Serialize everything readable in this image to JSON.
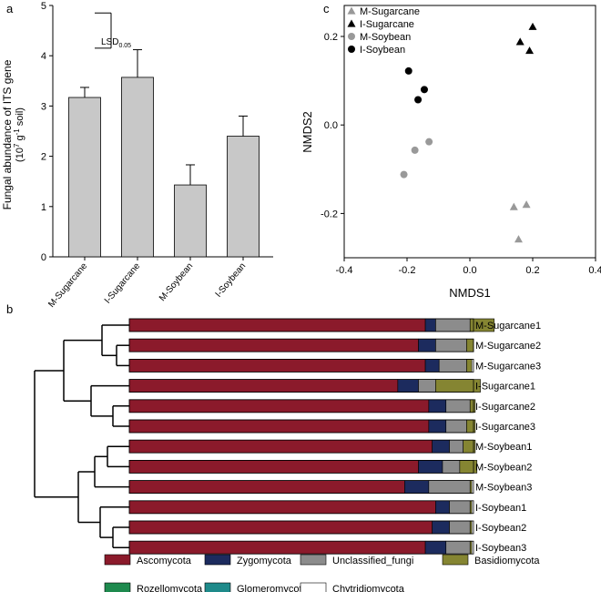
{
  "chart_data": [
    {
      "panel": "a",
      "type": "bar",
      "ylabel_line1": "Fungal abundance of ITS gene",
      "ylabel_line2_base": "(10",
      "ylabel_line2_exp": "7",
      "ylabel_line2_mid": " g",
      "ylabel_line2_exp2": "-1",
      "ylabel_line2_end": " soil)",
      "ylim": [
        0,
        5
      ],
      "yticks": [
        "0",
        "1",
        "2",
        "3",
        "4",
        "5"
      ],
      "categories": [
        "M-Sugarcane",
        "I-Sugarcane",
        "M-Soybean",
        "I-Soybean"
      ],
      "values": [
        3.17,
        3.57,
        1.43,
        2.4
      ],
      "errors": [
        0.2,
        0.55,
        0.4,
        0.4
      ],
      "lsd_label": "LSD",
      "lsd_sub": "0.05",
      "lsd_top": 4.85,
      "lsd_bottom": 4.15,
      "bar_color": "#c8c8c8"
    },
    {
      "panel": "c",
      "type": "scatter",
      "xlabel": "NMDS1",
      "ylabel": "NMDS2",
      "xlim": [
        -0.4,
        0.4
      ],
      "ylim": [
        -0.3,
        0.27
      ],
      "xticks": [
        "-0.4",
        "-0.2",
        "0.0",
        "0.2",
        "0.4"
      ],
      "xtick_values": [
        -0.4,
        -0.2,
        0.0,
        0.2,
        0.4
      ],
      "yticks": [
        "-0.2",
        "0.0",
        "0.2"
      ],
      "ytick_values": [
        -0.2,
        0.0,
        0.2
      ],
      "series": [
        {
          "name": "M-Sugarcane",
          "marker": "triangle",
          "color": "#999999",
          "points": [
            [
              0.14,
              -0.185
            ],
            [
              0.18,
              -0.18
            ],
            [
              0.155,
              -0.258
            ]
          ]
        },
        {
          "name": "I-Sugarcane",
          "marker": "triangle",
          "color": "#000000",
          "points": [
            [
              0.2,
              0.222
            ],
            [
              0.16,
              0.188
            ],
            [
              0.19,
              0.168
            ]
          ]
        },
        {
          "name": "M-Soybean",
          "marker": "circle",
          "color": "#999999",
          "points": [
            [
              -0.13,
              -0.038
            ],
            [
              -0.175,
              -0.057
            ],
            [
              -0.21,
              -0.112
            ]
          ]
        },
        {
          "name": "I-Soybean",
          "marker": "circle",
          "color": "#000000",
          "points": [
            [
              -0.195,
              0.122
            ],
            [
              -0.145,
              0.08
            ],
            [
              -0.165,
              0.057
            ]
          ]
        }
      ]
    },
    {
      "panel": "b",
      "type": "bar",
      "orientation": "horizontal-stacked",
      "categories": [
        "M-Sugarcane1",
        "M-Sugarcane2",
        "M-Sugarcane3",
        "I-Sugarcane1",
        "I-Sugarcane2",
        "I-Sugarcane3",
        "M-Soybean1",
        "M-Soybean2",
        "M-Soybean3",
        "I-Soybean1",
        "I-Soybean2",
        "I-Soybean3"
      ],
      "series": [
        {
          "name": "Ascomycota",
          "color": "#8b1a2b",
          "values": [
            0.86,
            0.84,
            0.86,
            0.78,
            0.87,
            0.87,
            0.88,
            0.84,
            0.8,
            0.89,
            0.88,
            0.86
          ]
        },
        {
          "name": "Zygomycota",
          "color": "#1c2b5e",
          "values": [
            0.03,
            0.05,
            0.04,
            0.06,
            0.05,
            0.05,
            0.05,
            0.07,
            0.07,
            0.04,
            0.05,
            0.06
          ]
        },
        {
          "name": "Unclassified_fungi",
          "color": "#8c8c8c",
          "values": [
            0.1,
            0.09,
            0.08,
            0.05,
            0.07,
            0.06,
            0.04,
            0.05,
            0.12,
            0.06,
            0.06,
            0.07
          ]
        },
        {
          "name": "Basidiomycota",
          "color": "#858532",
          "values": [
            0.07,
            0.02,
            0.015,
            0.13,
            0.015,
            0.025,
            0.035,
            0.05,
            0.005,
            0.005,
            0.005,
            0.005
          ]
        },
        {
          "name": "Rozellomycota",
          "color": "#1e8a4e",
          "values": [
            0.0,
            0.0,
            0.0,
            0.0,
            0.0,
            0.0,
            0.0,
            0.0,
            0.0,
            0.0,
            0.0,
            0.0
          ]
        },
        {
          "name": "Glomeromycota",
          "color": "#1e8a8a",
          "values": [
            0.0,
            0.0,
            0.0,
            0.0,
            0.0,
            0.0,
            0.0,
            0.0,
            0.0,
            0.0,
            0.0,
            0.0
          ]
        },
        {
          "name": "Chytridiomycota",
          "color": "#ffffff",
          "values": [
            0.0,
            0.0,
            0.0,
            0.0,
            0.0,
            0.0,
            0.0,
            0.0,
            0.0,
            0.0,
            0.0,
            0.0
          ]
        }
      ],
      "legend_row1": [
        "Ascomycota",
        "Zygomycota",
        "Unclassified_fungi",
        "Basidiomycota"
      ],
      "legend_row2": [
        "Rozellomycota",
        "Glomeromycota",
        "Chytridiomycota"
      ]
    }
  ],
  "panel_labels": {
    "a": "a",
    "b": "b",
    "c": "c"
  }
}
